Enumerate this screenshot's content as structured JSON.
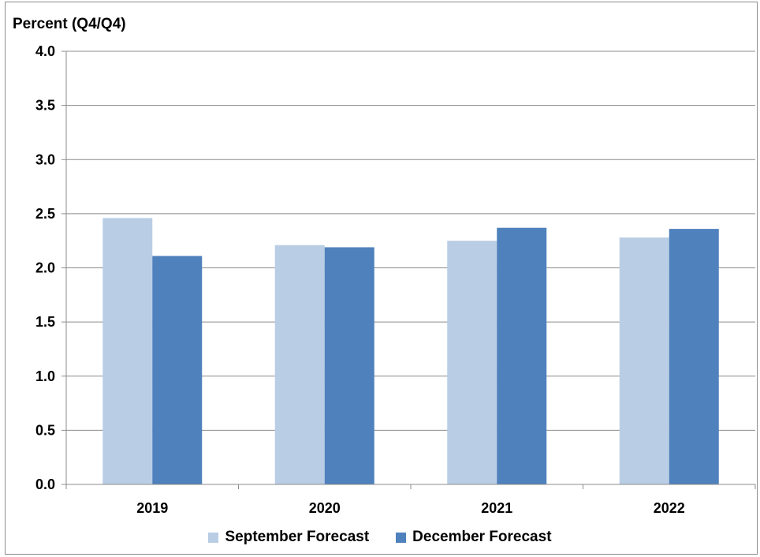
{
  "chart_data": {
    "type": "bar",
    "ylabel": "Percent (Q4/Q4)",
    "categories": [
      "2019",
      "2020",
      "2021",
      "2022"
    ],
    "series": [
      {
        "name": "September Forecast",
        "values": [
          2.46,
          2.21,
          2.25,
          2.28
        ],
        "color": "#b9cde5"
      },
      {
        "name": "December Forecast",
        "values": [
          2.11,
          2.19,
          2.37,
          2.36
        ],
        "color": "#4f81bd"
      }
    ],
    "ylim": [
      0,
      4.0
    ],
    "yticks": [
      "0.0",
      "0.5",
      "1.0",
      "1.5",
      "2.0",
      "2.5",
      "3.0",
      "3.5",
      "4.0"
    ],
    "grid": true,
    "legend_position": "bottom"
  }
}
